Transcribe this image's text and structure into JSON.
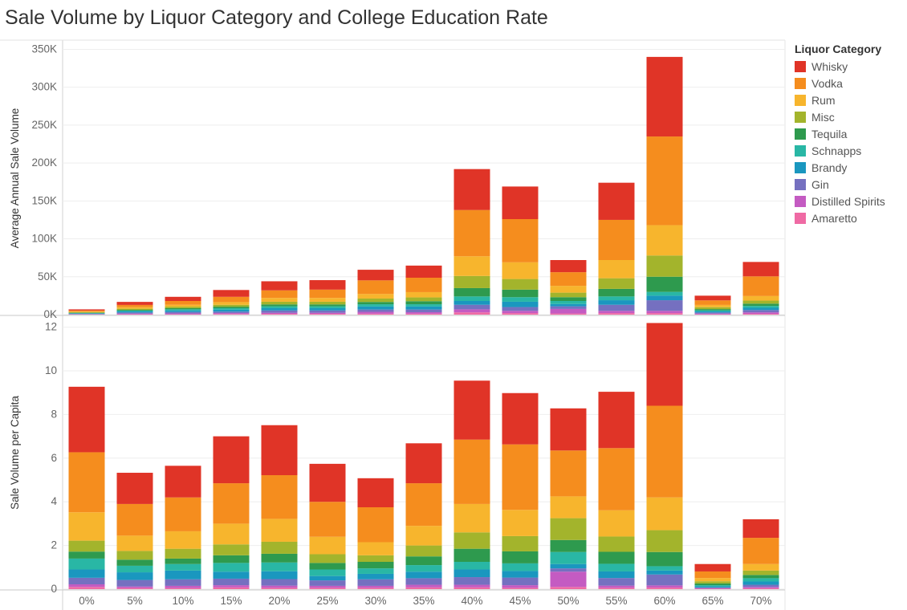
{
  "title": "Sale Volume by Liquor Category and College Education Rate",
  "legend": {
    "title": "Liquor Category",
    "items": [
      {
        "label": "Whisky",
        "color": "#e03427"
      },
      {
        "label": "Vodka",
        "color": "#f58d1e"
      },
      {
        "label": "Rum",
        "color": "#f7b52d"
      },
      {
        "label": "Misc",
        "color": "#a3b42c"
      },
      {
        "label": "Tequila",
        "color": "#2e9a4e"
      },
      {
        "label": "Schnapps",
        "color": "#29b7a5"
      },
      {
        "label": "Brandy",
        "color": "#1a97bf"
      },
      {
        "label": "Gin",
        "color": "#7570c0"
      },
      {
        "label": "Distilled Spirits",
        "color": "#c45bc2"
      },
      {
        "label": "Amaretto",
        "color": "#ef6aa4"
      }
    ]
  },
  "chart_data": [
    {
      "type": "bar",
      "stacked": true,
      "ylabel": "Average Annual Sale Volume",
      "ylim": [
        0,
        360000
      ],
      "yticks": [
        0,
        50000,
        100000,
        150000,
        200000,
        250000,
        300000,
        350000
      ],
      "ytick_labels": [
        "0K",
        "50K",
        "100K",
        "150K",
        "200K",
        "250K",
        "300K",
        "350K"
      ],
      "categories": [
        "0%",
        "5%",
        "10%",
        "15%",
        "20%",
        "25%",
        "30%",
        "35%",
        "40%",
        "45%",
        "50%",
        "55%",
        "60%",
        "65%",
        "70%"
      ],
      "series": [
        {
          "name": "Amaretto",
          "values": [
            200,
            500,
            500,
            800,
            1000,
            1000,
            1200,
            1200,
            3000,
            2000,
            1500,
            2000,
            2000,
            500,
            1000
          ]
        },
        {
          "name": "Distilled Spirits",
          "values": [
            300,
            800,
            1000,
            1200,
            1500,
            1500,
            2500,
            2000,
            4000,
            3000,
            6000,
            3000,
            3000,
            800,
            2000
          ]
        },
        {
          "name": "Gin",
          "values": [
            500,
            1500,
            2000,
            2000,
            3000,
            3000,
            3000,
            3500,
            6000,
            5000,
            3500,
            8000,
            14000,
            1500,
            3000
          ]
        },
        {
          "name": "Brandy",
          "values": [
            500,
            1500,
            2000,
            2500,
            3000,
            3000,
            4000,
            4000,
            5000,
            7000,
            3000,
            6000,
            6000,
            1500,
            3000
          ]
        },
        {
          "name": "Schnapps",
          "values": [
            500,
            1000,
            1500,
            2000,
            2500,
            2500,
            3000,
            3000,
            6000,
            6000,
            4000,
            5000,
            5000,
            1500,
            2500
          ]
        },
        {
          "name": "Tequila",
          "values": [
            500,
            1000,
            1500,
            2000,
            2500,
            2500,
            3000,
            4000,
            11000,
            10000,
            5000,
            10000,
            20000,
            1500,
            3000
          ]
        },
        {
          "name": "Misc",
          "values": [
            800,
            1500,
            2000,
            2500,
            3500,
            3500,
            4500,
            5000,
            16000,
            14000,
            6000,
            14000,
            28000,
            2500,
            4000
          ]
        },
        {
          "name": "Rum",
          "values": [
            700,
            2000,
            2500,
            3500,
            5000,
            5000,
            6000,
            7000,
            26000,
            22000,
            9000,
            24000,
            40000,
            3000,
            6000
          ]
        },
        {
          "name": "Vodka",
          "values": [
            1500,
            3000,
            5000,
            7000,
            10000,
            11000,
            18000,
            19000,
            61000,
            57000,
            18000,
            53000,
            117000,
            6000,
            26000
          ]
        },
        {
          "name": "Whisky",
          "values": [
            1500,
            4000,
            5500,
            9000,
            12000,
            12500,
            14000,
            16000,
            54000,
            43000,
            16000,
            49000,
            105000,
            6200,
            19000
          ]
        }
      ]
    },
    {
      "type": "bar",
      "stacked": true,
      "ylabel": "Sale Volume per Capita",
      "ylim": [
        0,
        12.5
      ],
      "yticks": [
        0,
        2,
        4,
        6,
        8,
        10,
        12
      ],
      "ytick_labels": [
        "0",
        "2",
        "4",
        "6",
        "8",
        "10",
        "12"
      ],
      "categories": [
        "0%",
        "5%",
        "10%",
        "15%",
        "20%",
        "25%",
        "30%",
        "35%",
        "40%",
        "45%",
        "50%",
        "55%",
        "60%",
        "65%",
        "70%"
      ],
      "series": [
        {
          "name": "Amaretto",
          "values": [
            0.1,
            0.05,
            0.05,
            0.08,
            0.06,
            0.06,
            0.06,
            0.08,
            0.08,
            0.06,
            0.1,
            0.06,
            0.07,
            0.02,
            0.04
          ]
        },
        {
          "name": "Distilled Spirits",
          "values": [
            0.12,
            0.07,
            0.1,
            0.1,
            0.1,
            0.09,
            0.09,
            0.12,
            0.12,
            0.12,
            0.7,
            0.1,
            0.1,
            0.02,
            0.06
          ]
        },
        {
          "name": "Gin",
          "values": [
            0.3,
            0.3,
            0.3,
            0.3,
            0.3,
            0.25,
            0.3,
            0.3,
            0.35,
            0.35,
            0.15,
            0.35,
            0.5,
            0.04,
            0.1
          ]
        },
        {
          "name": "Brandy",
          "values": [
            0.38,
            0.35,
            0.4,
            0.32,
            0.36,
            0.2,
            0.25,
            0.3,
            0.35,
            0.3,
            0.2,
            0.3,
            0.18,
            0.05,
            0.15
          ]
        },
        {
          "name": "Schnapps",
          "values": [
            0.5,
            0.3,
            0.3,
            0.4,
            0.4,
            0.3,
            0.25,
            0.3,
            0.35,
            0.35,
            0.55,
            0.35,
            0.2,
            0.05,
            0.15
          ]
        },
        {
          "name": "Tequila",
          "values": [
            0.32,
            0.28,
            0.25,
            0.35,
            0.4,
            0.3,
            0.3,
            0.4,
            0.6,
            0.55,
            0.55,
            0.55,
            0.65,
            0.08,
            0.15
          ]
        },
        {
          "name": "Misc",
          "values": [
            0.5,
            0.4,
            0.45,
            0.5,
            0.55,
            0.4,
            0.3,
            0.5,
            0.75,
            0.7,
            1.0,
            0.7,
            1.0,
            0.1,
            0.2
          ]
        },
        {
          "name": "Rum",
          "values": [
            1.3,
            0.7,
            0.8,
            0.95,
            1.05,
            0.8,
            0.6,
            0.9,
            1.3,
            1.2,
            1.0,
            1.2,
            1.5,
            0.15,
            0.3
          ]
        },
        {
          "name": "Vodka",
          "values": [
            2.75,
            1.45,
            1.55,
            1.85,
            2.0,
            1.6,
            1.6,
            1.95,
            2.95,
            3.0,
            2.1,
            2.85,
            4.2,
            0.3,
            1.2
          ]
        },
        {
          "name": "Whisky",
          "values": [
            3.0,
            1.43,
            1.45,
            2.15,
            2.29,
            1.74,
            1.33,
            1.83,
            2.7,
            2.35,
            1.93,
            2.58,
            3.79,
            0.34,
            0.85
          ]
        }
      ]
    }
  ]
}
